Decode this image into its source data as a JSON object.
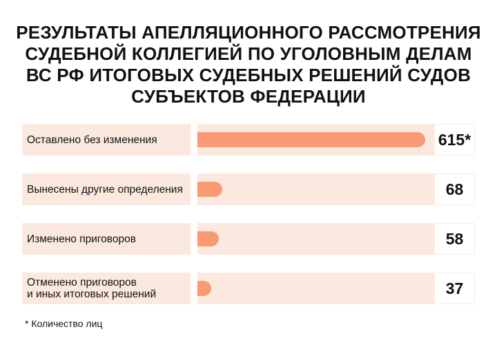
{
  "title_lines": [
    "РЕЗУЛЬТАТЫ АПЕЛЛЯЦИОННОГО РАССМОТРЕНИЯ",
    "СУДЕБНОЙ КОЛЛЕГИЕЙ ПО УГОЛОВНЫМ ДЕЛАМ",
    "ВС РФ ИТОГОВЫХ СУДЕБНЫХ РЕШЕНИЙ СУДОВ",
    "СУБЪЕКТОВ ФЕДЕРАЦИИ"
  ],
  "footnote": "* Количество лиц",
  "colors": {
    "bar": "#f99a74",
    "row_background": "#fbe9e0"
  },
  "chart_data": {
    "type": "bar",
    "orientation": "horizontal",
    "title": "РЕЗУЛЬТАТЫ АПЕЛЛЯЦИОННОГО РАССМОТРЕНИЯ СУДЕБНОЙ КОЛЛЕГИЕЙ ПО УГОЛОВНЫМ ДЕЛАМ ВС РФ ИТОГОВЫХ СУДЕБНЫХ РЕШЕНИЙ СУДОВ СУБЪЕКТОВ ФЕДЕРАЦИИ",
    "xlim": [
      0,
      615
    ],
    "categories": [
      [
        "Оставлено без изменения"
      ],
      [
        "Вынесены другие определения"
      ],
      [
        "Изменено приговоров"
      ],
      [
        "Отменено приговоров",
        "и иных итоговых решений"
      ]
    ],
    "values": [
      615,
      68,
      58,
      37
    ],
    "value_labels": [
      "615*",
      "68",
      "58",
      "37"
    ]
  }
}
